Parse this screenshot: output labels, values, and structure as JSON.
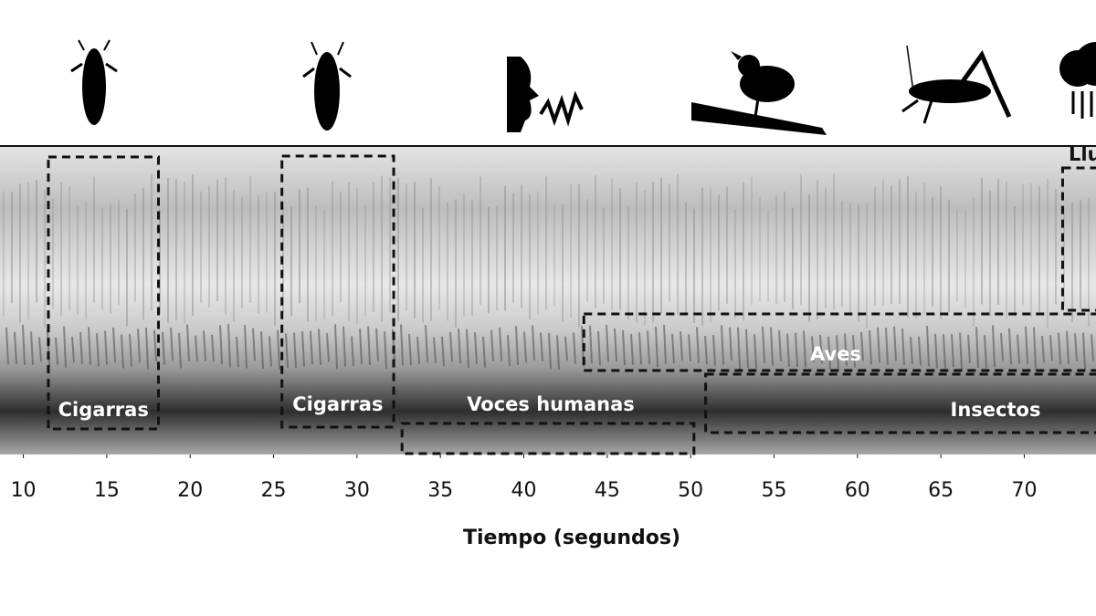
{
  "chart_data": {
    "type": "spectrogram",
    "x_label": "Tiempo (segundos)",
    "xlim": [
      8.6,
      74.3
    ],
    "xticks": [
      10,
      15,
      20,
      25,
      30,
      35,
      40,
      45,
      50,
      55,
      60,
      65,
      70
    ],
    "regions": [
      {
        "name": "Cigarras",
        "start": 11.5,
        "end": 18.1
      },
      {
        "name": "Cigarras",
        "start": 25.5,
        "end": 32.2
      },
      {
        "name": "Voces humanas",
        "start": 32.7,
        "end": 50.2
      },
      {
        "name": "Aves",
        "start": 43.6,
        "end": 75
      },
      {
        "name": "Insectos",
        "start": 50.9,
        "end": 75
      },
      {
        "name": "Lluvia",
        "start": 72.3,
        "end": 75
      }
    ]
  }
}
